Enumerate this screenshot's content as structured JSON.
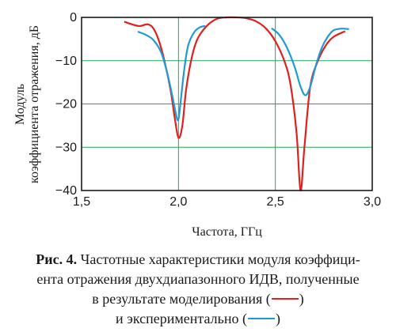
{
  "chart_data": {
    "type": "line",
    "xlabel": "Частота, ГГц",
    "ylabel_line1": "Модуль",
    "ylabel_line2": "коэффициента отражения, дБ",
    "xlim": [
      1.5,
      3.0
    ],
    "ylim": [
      -40,
      0
    ],
    "x_ticks": [
      1.5,
      2.0,
      2.5,
      3.0
    ],
    "x_tick_labels": [
      "1,5",
      "2,0",
      "2,5",
      "3,0"
    ],
    "y_ticks": [
      0,
      -10,
      -20,
      -30,
      -40
    ],
    "y_tick_labels": [
      "0",
      "−10",
      "−20",
      "−30",
      "−40"
    ],
    "grid": true,
    "grid_color": "#22a559",
    "series": [
      {
        "color": "#e02020",
        "points": [
          [
            1.72,
            -1.0
          ],
          [
            1.76,
            -1.6
          ],
          [
            1.8,
            -2.0
          ],
          [
            1.84,
            -1.6
          ],
          [
            1.87,
            -2.5
          ],
          [
            1.9,
            -5.5
          ],
          [
            1.93,
            -10.5
          ],
          [
            1.96,
            -17
          ],
          [
            1.98,
            -23
          ],
          [
            2.0,
            -27.8
          ],
          [
            2.02,
            -25
          ],
          [
            2.04,
            -16.5
          ],
          [
            2.07,
            -9
          ],
          [
            2.1,
            -4.8
          ],
          [
            2.15,
            -1.8
          ],
          [
            2.2,
            -0.3
          ],
          [
            2.25,
            0
          ],
          [
            2.3,
            0
          ],
          [
            2.35,
            -0.2
          ],
          [
            2.4,
            -0.9
          ],
          [
            2.45,
            -2.5
          ],
          [
            2.5,
            -5.5
          ],
          [
            2.55,
            -10.5
          ],
          [
            2.58,
            -16
          ],
          [
            2.61,
            -27
          ],
          [
            2.63,
            -40
          ],
          [
            2.65,
            -30
          ],
          [
            2.68,
            -16
          ],
          [
            2.72,
            -10
          ],
          [
            2.76,
            -6.5
          ],
          [
            2.8,
            -4.5
          ],
          [
            2.86,
            -3.2
          ]
        ],
        "gaps": []
      },
      {
        "color": "#1e9bd7",
        "segments": [
          [
            [
              1.79,
              -3.3
            ],
            [
              1.83,
              -4.0
            ],
            [
              1.87,
              -5.2
            ],
            [
              1.91,
              -8.0
            ],
            [
              1.94,
              -12.5
            ],
            [
              1.97,
              -18.5
            ],
            [
              1.99,
              -23.0
            ],
            [
              2.0,
              -23.5
            ],
            [
              2.01,
              -20.0
            ],
            [
              2.03,
              -12.0
            ],
            [
              2.05,
              -6.5
            ],
            [
              2.08,
              -3.5
            ],
            [
              2.11,
              -2.3
            ],
            [
              2.14,
              -2.0
            ]
          ],
          [
            [
              2.48,
              -2.5
            ],
            [
              2.52,
              -4.0
            ],
            [
              2.56,
              -7.0
            ],
            [
              2.6,
              -11.5
            ],
            [
              2.63,
              -16.0
            ],
            [
              2.655,
              -18.0
            ],
            [
              2.68,
              -16.0
            ],
            [
              2.71,
              -11.0
            ],
            [
              2.74,
              -7.0
            ],
            [
              2.77,
              -4.5
            ],
            [
              2.8,
              -3.0
            ],
            [
              2.84,
              -2.6
            ],
            [
              2.88,
              -2.7
            ]
          ]
        ]
      }
    ]
  },
  "caption": {
    "fig": "Рис. 4.",
    "line1_text": " Частотные характеристики модуля коэффици-",
    "line2_text": "ента отражения двухдиапазонного ИДВ, полученные",
    "line3_text": "в результате моделирования (",
    "line3_close": ")",
    "line4_text": "и экспериментально (",
    "line4_close": ")"
  }
}
